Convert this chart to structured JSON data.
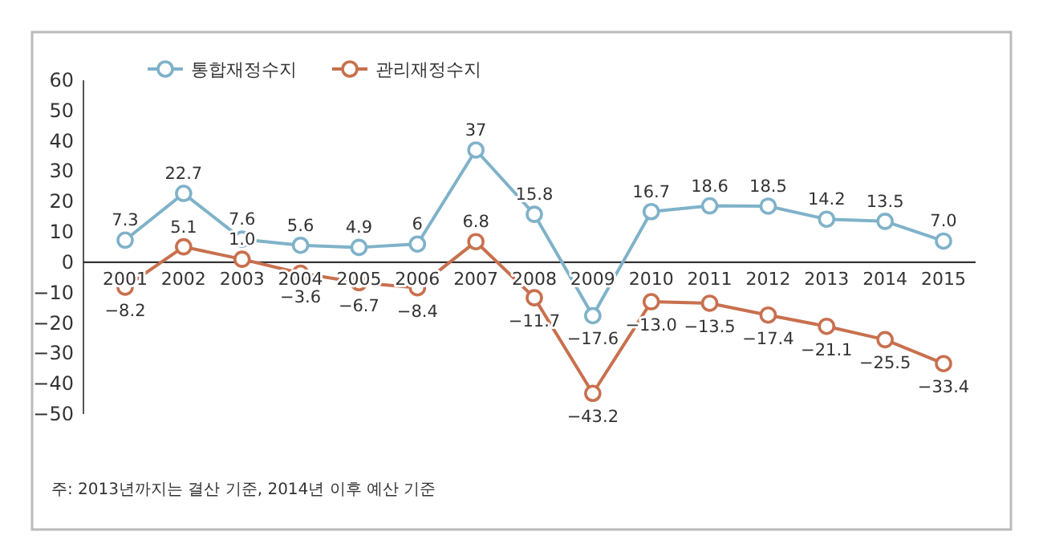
{
  "chart_data": {
    "type": "line",
    "categories": [
      "2001",
      "2002",
      "2003",
      "2004",
      "2005",
      "2006",
      "2007",
      "2008",
      "2009",
      "2010",
      "2011",
      "2012",
      "2013",
      "2014",
      "2015"
    ],
    "series": [
      {
        "name": "통합재정수지",
        "color": "#7fb2c9",
        "values": [
          7.3,
          22.7,
          7.6,
          5.6,
          4.9,
          6,
          37,
          15.8,
          -17.6,
          16.7,
          18.6,
          18.5,
          14.2,
          13.5,
          7.0
        ],
        "value_labels": [
          "7.3",
          "22.7",
          "7.6",
          "5.6",
          "4.9",
          "6",
          "37",
          "15.8",
          "−17.6",
          "16.7",
          "18.6",
          "18.5",
          "14.2",
          "13.5",
          "7.0"
        ]
      },
      {
        "name": "관리재정수지",
        "color": "#c8704e",
        "values": [
          -8.2,
          5.1,
          1.0,
          -3.6,
          -6.7,
          -8.4,
          6.8,
          -11.7,
          -43.2,
          -13.0,
          -13.5,
          -17.4,
          -21.1,
          -25.5,
          -33.4
        ],
        "value_labels": [
          "−8.2",
          "5.1",
          "1.0",
          "−3.6",
          "−6.7",
          "−8.4",
          "6.8",
          "−11.7",
          "−43.2",
          "−13.0",
          "−13.5",
          "−17.4",
          "−21.1",
          "−25.5",
          "−33.4"
        ]
      }
    ],
    "ylim": [
      -50,
      60
    ],
    "yticks": [
      {
        "value": -50,
        "label": "−50"
      },
      {
        "value": -40,
        "label": "−40"
      },
      {
        "value": -30,
        "label": "−30"
      },
      {
        "value": -20,
        "label": "−20"
      },
      {
        "value": -10,
        "label": "−10"
      },
      0,
      10,
      20,
      30,
      40,
      60,
      {
        "value": 50,
        "label": "50"
      }
    ],
    "grid": false,
    "legend": "top left",
    "marker": "circle",
    "line_style": "solid",
    "annotations": [
      "주: 2013년까지는 결산 기준, 2014년 이후 예산 기준"
    ]
  }
}
